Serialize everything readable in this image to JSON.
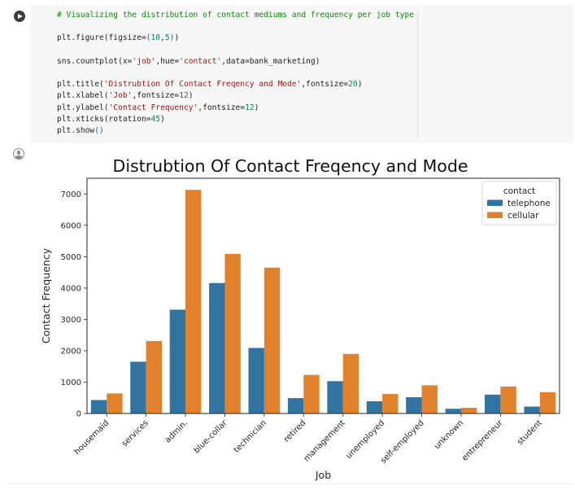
{
  "code_cell": {
    "run_button_icon": "play-icon",
    "lines": [
      [
        {
          "t": "# Visualizing the distribution of contact mediums and frequency per job type",
          "c": "cm"
        }
      ],
      [],
      [
        {
          "t": "plt.figure(figsize="
        },
        {
          "t": "(",
          "c": "br"
        },
        {
          "t": "10",
          "c": "nm"
        },
        {
          "t": ","
        },
        {
          "t": "5",
          "c": "nm"
        },
        {
          "t": ")",
          "c": "br"
        },
        {
          "t": ")"
        }
      ],
      [],
      [
        {
          "t": "sns.countplot(x="
        },
        {
          "t": "'job'",
          "c": "st"
        },
        {
          "t": ",hue="
        },
        {
          "t": "'contact'",
          "c": "st"
        },
        {
          "t": ",data=bank_marketing)"
        }
      ],
      [],
      [
        {
          "t": "plt.title("
        },
        {
          "t": "'Distrubtion Of Contact Freqency and Mode'",
          "c": "st"
        },
        {
          "t": ",fontsize="
        },
        {
          "t": "20",
          "c": "nm"
        },
        {
          "t": ")"
        }
      ],
      [
        {
          "t": "plt.xlabel("
        },
        {
          "t": "'Job'",
          "c": "st"
        },
        {
          "t": ",fontsize="
        },
        {
          "t": "12",
          "c": "nm"
        },
        {
          "t": ")"
        }
      ],
      [
        {
          "t": "plt.ylabel("
        },
        {
          "t": "'Contact Frequency'",
          "c": "st"
        },
        {
          "t": ",fontsize="
        },
        {
          "t": "12",
          "c": "nm"
        },
        {
          "t": ")"
        }
      ],
      [
        {
          "t": "plt.xticks(rotation="
        },
        {
          "t": "45",
          "c": "nm"
        },
        {
          "t": ")"
        }
      ],
      [
        {
          "t": "plt.show"
        },
        {
          "t": "()",
          "c": "br"
        }
      ]
    ]
  },
  "output": {
    "icon": "output-user-icon"
  },
  "colors": {
    "telephone": "#3274a1",
    "cellular": "#e1812c"
  },
  "chart_data": {
    "type": "bar",
    "title": "Distrubtion Of Contact Freqency and Mode",
    "xlabel": "Job",
    "ylabel": "Contact Frequency",
    "categories": [
      "housemaid",
      "services",
      "admin.",
      "blue-collar",
      "technician",
      "retired",
      "management",
      "unemployed",
      "self-employed",
      "unknown",
      "entrepreneur",
      "student"
    ],
    "series": [
      {
        "name": "telephone",
        "values": [
          430,
          1650,
          3310,
          4160,
          2090,
          490,
          1030,
          390,
          520,
          150,
          600,
          220
        ]
      },
      {
        "name": "cellular",
        "values": [
          640,
          2310,
          7130,
          5090,
          4650,
          1230,
          1900,
          620,
          900,
          180,
          860,
          680
        ]
      }
    ],
    "ylim": [
      0,
      7500
    ],
    "yticks": [
      0,
      1000,
      2000,
      3000,
      4000,
      5000,
      6000,
      7000
    ],
    "x_tick_rotation": 45,
    "grid": false,
    "legend": {
      "title": "contact",
      "placement": "top-right"
    }
  }
}
